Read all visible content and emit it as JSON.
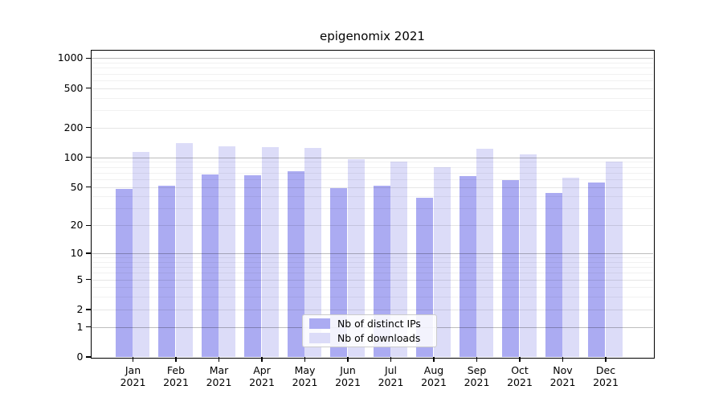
{
  "title": "epigenomix 2021",
  "colors": {
    "bar_distinct_ips": "#ababf2",
    "bar_downloads": "#dcdcf8",
    "grid_major_dark": "#bdbdbd",
    "grid_major_light": "#e4e4e4",
    "grid_minor": "#efefef",
    "axis": "#000000",
    "legend_border": "#cccccc"
  },
  "chart_data": {
    "type": "bar",
    "title": "epigenomix 2021",
    "categories": [
      "Jan",
      "Feb",
      "Mar",
      "Apr",
      "May",
      "Jun",
      "Jul",
      "Aug",
      "Sep",
      "Oct",
      "Nov",
      "Dec"
    ],
    "year_label": "2021",
    "series": [
      {
        "name": "Nb of distinct IPs",
        "color": "#ababf2",
        "values": [
          48,
          51,
          67,
          66,
          72,
          49,
          51,
          39,
          65,
          59,
          43,
          55
        ]
      },
      {
        "name": "Nb of downloads",
        "color": "#dcdcf8",
        "values": [
          113,
          139,
          129,
          127,
          125,
          96,
          91,
          79,
          122,
          108,
          62,
          90
        ]
      }
    ],
    "xlabel": "",
    "ylabel": "",
    "yscale": "log1p-symlog",
    "yticks": [
      0,
      1,
      2,
      5,
      10,
      20,
      50,
      100,
      200,
      500,
      1000
    ],
    "yticks_major_emphasis": [
      1,
      10,
      100,
      1000
    ],
    "yticks_minor": [
      3,
      4,
      6,
      7,
      8,
      9,
      30,
      40,
      60,
      70,
      80,
      90,
      300,
      400,
      600,
      700,
      800,
      900
    ],
    "ylim": [
      0,
      1280
    ],
    "grid": true,
    "legend_position": "inside-bottom-center"
  }
}
